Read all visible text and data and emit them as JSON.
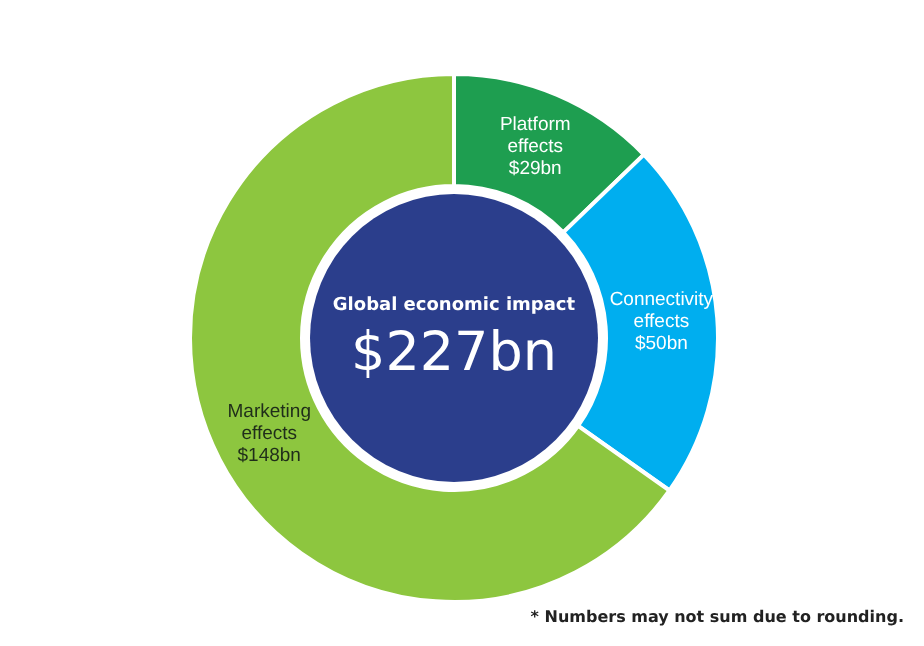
{
  "chart_data": {
    "type": "donut",
    "title": "Global economic impact",
    "subtitle": "$227bn",
    "categories": [
      "Platform effects",
      "Connectivity effects",
      "Marketing effects"
    ],
    "values": [
      29,
      50,
      148
    ],
    "value_labels": [
      "$29bn",
      "$50bn",
      "$148bn"
    ],
    "colors": [
      "#1e9e50",
      "#00aeef",
      "#8dc63f"
    ],
    "annotations": [
      "* Numbers may not sum due to rounding."
    ]
  }
}
